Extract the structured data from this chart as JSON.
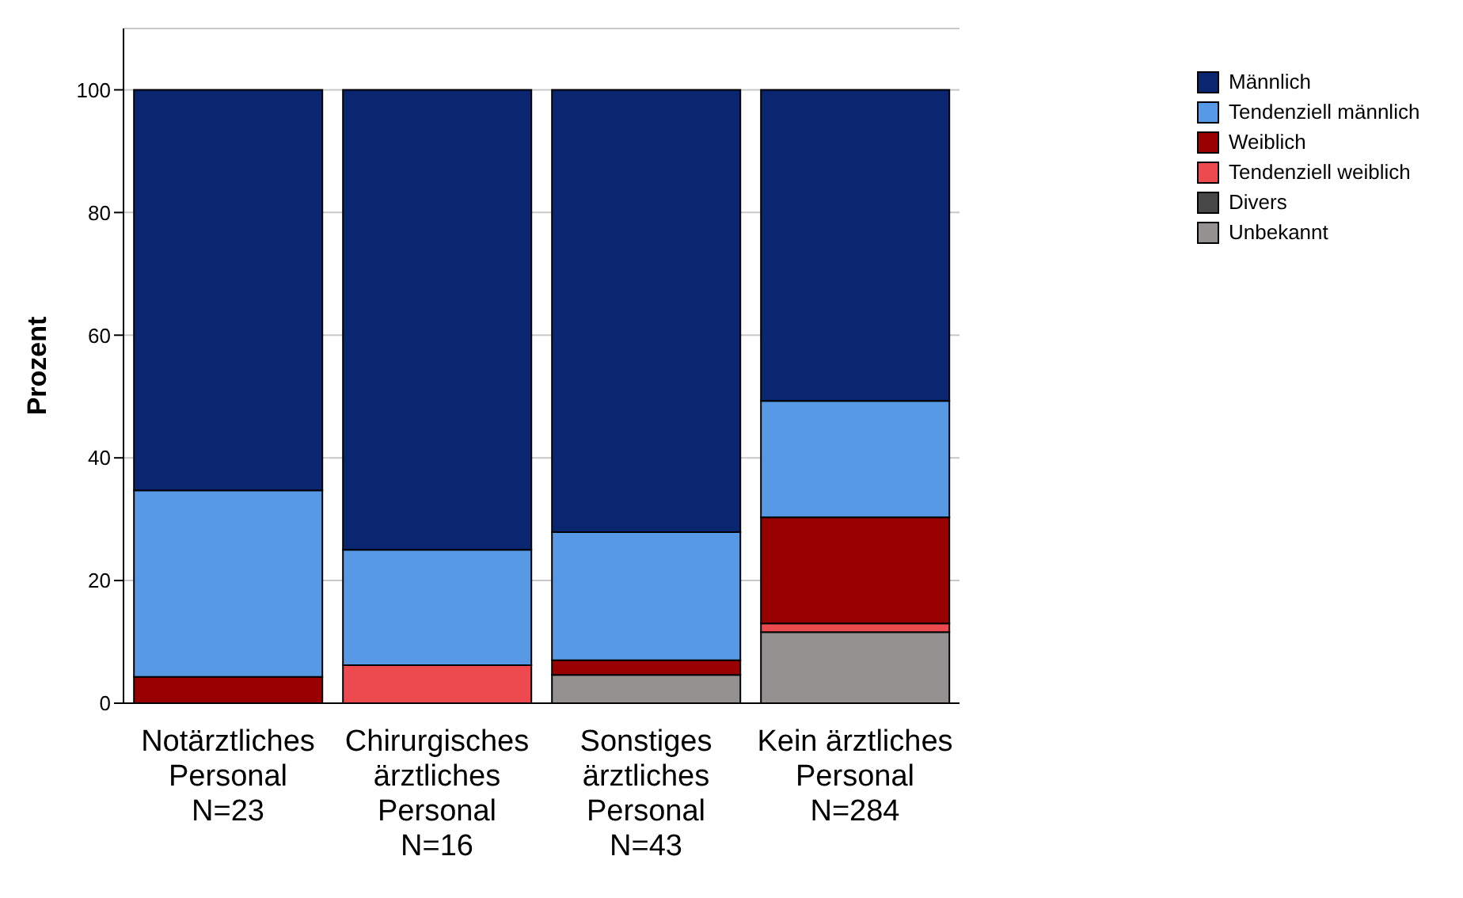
{
  "chart_data": {
    "type": "bar",
    "ylabel": "Prozent",
    "stacked": true,
    "categories": [
      "Notärztliches\nPersonal\nN=23",
      "Chirurgisches\närztliches\nPersonal\nN=16",
      "Sonstiges\närztliches\nPersonal\nN=43",
      "Kein ärztliches\nPersonal\nN=284"
    ],
    "series": [
      {
        "name": "Unbekannt",
        "color": "#959191",
        "values": [
          0,
          0,
          4.6,
          11.6
        ]
      },
      {
        "name": "Divers",
        "color": "#474747",
        "values": [
          0,
          0,
          0,
          0
        ]
      },
      {
        "name": "Tendenziell weiblich",
        "color": "#ec4a4e",
        "values": [
          0,
          6.2,
          0,
          1.4
        ]
      },
      {
        "name": "Weiblich",
        "color": "#990000",
        "values": [
          4.3,
          0,
          2.4,
          17.3
        ]
      },
      {
        "name": "Tendenziell männlich",
        "color": "#5799e4",
        "values": [
          30.4,
          18.8,
          20.9,
          19.0
        ]
      },
      {
        "name": "Männlich",
        "color": "#0b2670",
        "values": [
          65.3,
          75.0,
          72.1,
          50.7
        ]
      }
    ],
    "ylim": [
      0,
      110
    ],
    "yticks": [
      0,
      20,
      40,
      60,
      80,
      100
    ],
    "grid": "y",
    "legend": "top right"
  }
}
